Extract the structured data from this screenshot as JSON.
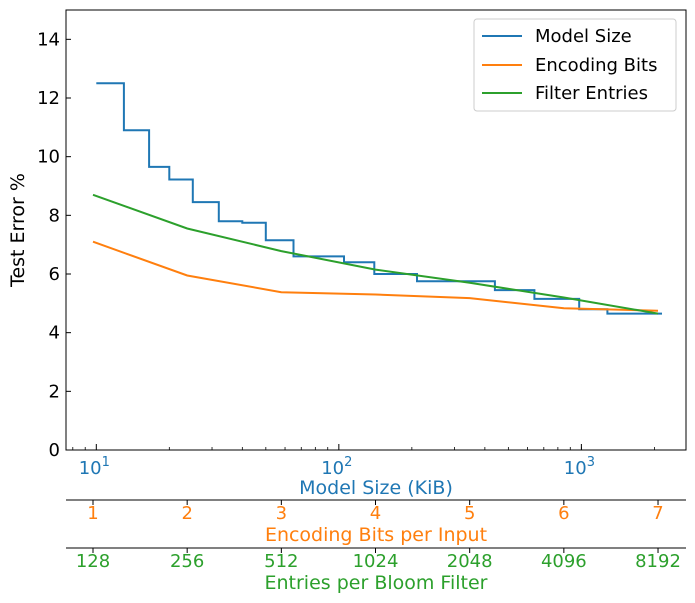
{
  "chart_data": {
    "type": "line",
    "title": "",
    "ylabel": "Test Error %",
    "ylim": [
      0,
      15
    ],
    "y_ticks": [
      0,
      2,
      4,
      6,
      8,
      10,
      12,
      14
    ],
    "x_axes": [
      {
        "name": "model-size",
        "label": "Model Size (KiB)",
        "color": "#1f77b4",
        "scale": "log",
        "range": [
          7.5,
          2700
        ],
        "ticks": [
          {
            "value": 10,
            "base": "10",
            "exp": "1"
          },
          {
            "value": 100,
            "base": "10",
            "exp": "2"
          },
          {
            "value": 1000,
            "base": "10",
            "exp": "3"
          }
        ]
      },
      {
        "name": "encoding-bits",
        "label": "Encoding Bits per Input",
        "color": "#ff7f0e",
        "ticks": [
          "1",
          "2",
          "3",
          "4",
          "5",
          "6",
          "7"
        ]
      },
      {
        "name": "bloom-entries",
        "label": "Entries per Bloom Filter",
        "color": "#2ca02c",
        "ticks": [
          "128",
          "256",
          "512",
          "1024",
          "2048",
          "4096",
          "8192"
        ]
      }
    ],
    "series": [
      {
        "name": "Model Size",
        "color": "#1f77b4",
        "style": "step",
        "x_axis": "model-size",
        "points": [
          [
            10,
            12.5
          ],
          [
            13,
            12.5
          ],
          [
            13,
            10.9
          ],
          [
            16.5,
            10.9
          ],
          [
            16.5,
            9.65
          ],
          [
            20,
            9.65
          ],
          [
            20,
            9.22
          ],
          [
            25,
            9.22
          ],
          [
            25,
            8.45
          ],
          [
            32,
            8.45
          ],
          [
            32,
            7.8
          ],
          [
            40,
            7.8
          ],
          [
            40,
            7.75
          ],
          [
            50,
            7.75
          ],
          [
            50,
            7.15
          ],
          [
            65,
            7.15
          ],
          [
            65,
            6.6
          ],
          [
            105,
            6.6
          ],
          [
            105,
            6.4
          ],
          [
            140,
            6.4
          ],
          [
            140,
            6.0
          ],
          [
            210,
            6.0
          ],
          [
            210,
            5.75
          ],
          [
            440,
            5.75
          ],
          [
            440,
            5.45
          ],
          [
            640,
            5.45
          ],
          [
            640,
            5.15
          ],
          [
            980,
            5.15
          ],
          [
            980,
            4.8
          ],
          [
            1280,
            4.8
          ],
          [
            1280,
            4.65
          ],
          [
            2150,
            4.65
          ]
        ]
      },
      {
        "name": "Encoding Bits",
        "color": "#ff7f0e",
        "style": "line",
        "x_axis": "encoding-bits",
        "x": [
          1,
          2,
          3,
          4,
          5,
          6,
          7
        ],
        "y": [
          7.1,
          5.95,
          5.38,
          5.3,
          5.18,
          4.83,
          4.75
        ]
      },
      {
        "name": "Filter Entries",
        "color": "#2ca02c",
        "style": "line",
        "x_axis": "encoding-bits",
        "x": [
          1,
          2,
          3,
          4,
          5,
          6,
          7
        ],
        "y": [
          8.7,
          7.55,
          6.78,
          6.15,
          5.7,
          5.2,
          4.65
        ]
      }
    ],
    "legend": {
      "position": "top-right",
      "entries": [
        "Model Size",
        "Encoding Bits",
        "Filter Entries"
      ]
    }
  }
}
